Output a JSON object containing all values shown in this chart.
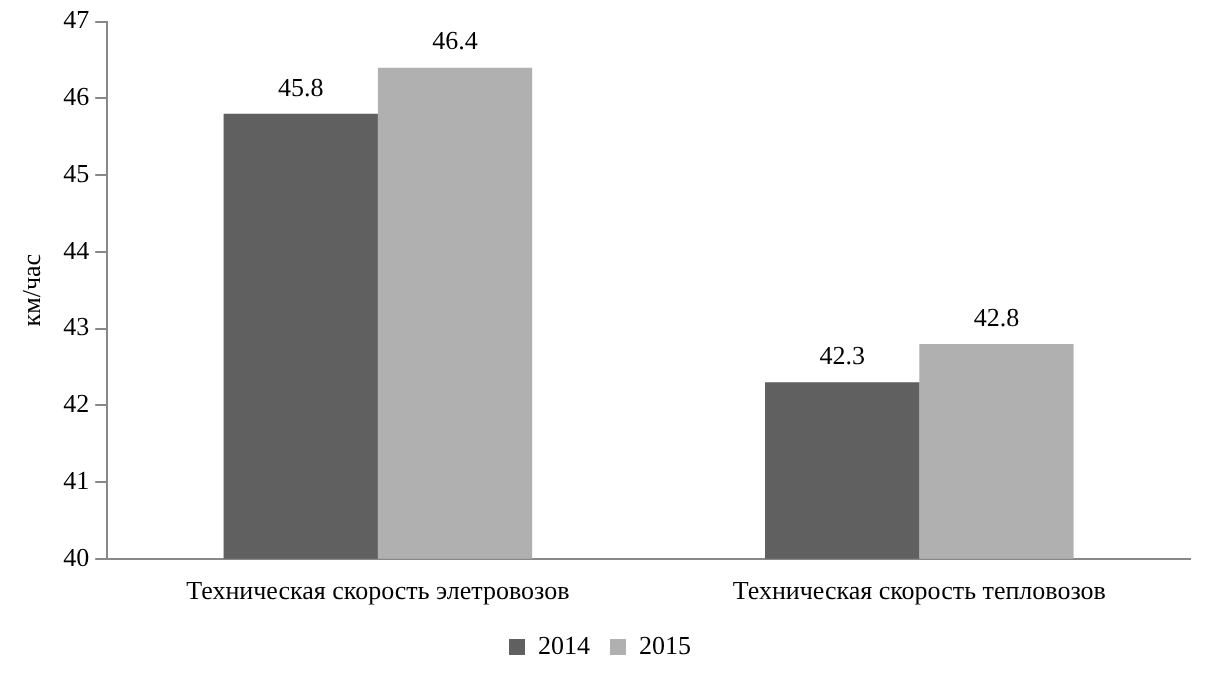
{
  "chart_data": {
    "type": "bar",
    "ylabel": "км/час",
    "categories": [
      "Техническая скорость элетровозов",
      "Техническая скорость тепловозов"
    ],
    "series": [
      {
        "name": "2014",
        "color": "#606060",
        "values": [
          45.8,
          42.3
        ]
      },
      {
        "name": "2015",
        "color": "#b0b0b0",
        "values": [
          46.4,
          42.8
        ]
      }
    ],
    "ylim": [
      40,
      47
    ],
    "yticks": [
      40,
      41,
      42,
      43,
      44,
      45,
      46,
      47
    ],
    "grid": false,
    "legend": "bottom",
    "data_labels": true
  }
}
